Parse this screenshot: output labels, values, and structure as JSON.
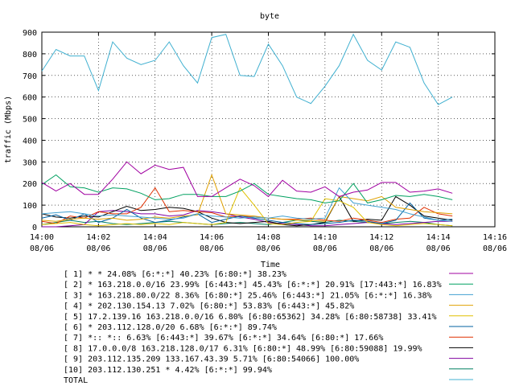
{
  "chart_data": {
    "type": "line",
    "title": "byte",
    "xlabel": "Time",
    "ylabel": "traffic (Mbps)",
    "ylim": [
      0,
      900
    ],
    "yticks": [
      0,
      100,
      200,
      300,
      400,
      500,
      600,
      700,
      800,
      900
    ],
    "xlim_minutes": [
      0,
      16
    ],
    "xticks": [
      {
        "minute": 0,
        "time": "14:00",
        "date": "08/06"
      },
      {
        "minute": 2,
        "time": "14:02",
        "date": "08/06"
      },
      {
        "minute": 4,
        "time": "14:04",
        "date": "08/06"
      },
      {
        "minute": 6,
        "time": "14:06",
        "date": "08/06"
      },
      {
        "minute": 8,
        "time": "14:08",
        "date": "08/06"
      },
      {
        "minute": 10,
        "time": "14:10",
        "date": "08/06"
      },
      {
        "minute": 12,
        "time": "14:12",
        "date": "08/06"
      },
      {
        "minute": 14,
        "time": "14:14",
        "date": "08/06"
      },
      {
        "minute": 16,
        "time": "14:16",
        "date": "08/06"
      }
    ],
    "x_minutes": [
      0,
      0.5,
      1,
      1.5,
      2,
      2.5,
      3,
      3.5,
      4,
      4.5,
      5,
      5.5,
      6,
      6.5,
      7,
      7.5,
      8,
      8.5,
      9,
      9.5,
      10,
      10.5,
      11,
      11.5,
      12,
      12.5,
      13,
      13.5,
      14,
      14.5
    ],
    "series": [
      {
        "name": "[ 1] * * 24.08%  [6:*:*] 40.23% [6:80:*] 38.23%",
        "color": "#a000a0",
        "values": [
          205,
          165,
          200,
          150,
          150,
          220,
          300,
          245,
          285,
          265,
          275,
          140,
          140,
          180,
          220,
          190,
          140,
          215,
          165,
          160,
          185,
          140,
          160,
          170,
          205,
          205,
          160,
          165,
          175,
          155
        ]
      },
      {
        "name": "[ 2] * 163.218.0.0/16 23.99%  [6:443:*] 45.43% [6:*:*] 20.91% [17:443:*] 16.83%",
        "color": "#00a060",
        "values": [
          195,
          240,
          185,
          180,
          160,
          180,
          175,
          155,
          125,
          130,
          150,
          150,
          140,
          140,
          165,
          200,
          150,
          140,
          130,
          125,
          110,
          120,
          200,
          110,
          125,
          145,
          140,
          150,
          140,
          125
        ]
      },
      {
        "name": "[ 3] * 163.218.80.0/22 8.36%  [6:80:*] 25.46% [6:443:*] 21.05% [6:*:*] 16.38%",
        "color": "#40a0d0",
        "values": [
          60,
          65,
          70,
          60,
          50,
          55,
          50,
          45,
          40,
          35,
          40,
          60,
          50,
          45,
          40,
          45,
          40,
          50,
          40,
          35,
          40,
          180,
          110,
          100,
          90,
          80,
          60,
          45,
          30,
          25
        ]
      },
      {
        "name": "[ 4] * 202.130.154.13 7.02%  [6:80:*] 53.83% [6:443:*] 45.82%",
        "color": "#e0a000",
        "values": [
          30,
          25,
          35,
          40,
          35,
          40,
          30,
          35,
          45,
          40,
          50,
          55,
          240,
          60,
          55,
          50,
          40,
          35,
          30,
          30,
          25,
          140,
          130,
          120,
          140,
          90,
          80,
          70,
          65,
          60
        ]
      },
      {
        "name": "[ 5] 17.2.139.16 163.218.0.0/16 6.80%  [6:80:65362] 34.28% [6:80:58738] 33.41%",
        "color": "#e0c000",
        "values": [
          10,
          15,
          20,
          10,
          5,
          10,
          15,
          10,
          15,
          10,
          20,
          15,
          10,
          20,
          180,
          100,
          15,
          10,
          20,
          25,
          130,
          120,
          90,
          20,
          10,
          5,
          10,
          15,
          10,
          5
        ]
      },
      {
        "name": "[ 6] * 203.112.128.0/20 6.68%  [6:*:*] 89.74%",
        "color": "#0060a0",
        "values": [
          40,
          55,
          30,
          60,
          20,
          40,
          80,
          40,
          20,
          30,
          45,
          60,
          20,
          35,
          50,
          40,
          30,
          20,
          15,
          10,
          15,
          20,
          30,
          25,
          15,
          30,
          110,
          40,
          30,
          35
        ]
      },
      {
        "name": "[ 7] *:: *:: 6.63%  [6:443:*] 39.67% [6:*:*] 34.64% [6:80:*] 17.66%",
        "color": "#e03000",
        "values": [
          25,
          15,
          50,
          40,
          70,
          60,
          60,
          90,
          180,
          70,
          75,
          70,
          65,
          45,
          50,
          45,
          40,
          35,
          35,
          40,
          30,
          25,
          40,
          30,
          20,
          35,
          40,
          90,
          60,
          50
        ]
      },
      {
        "name": "[ 8] 17.0.0.0/8 163.218.128.0/17 6.31%  [6:80:*] 48.99% [6:80:59088] 19.99%",
        "color": "#000000",
        "values": [
          60,
          45,
          40,
          50,
          45,
          70,
          95,
          75,
          80,
          90,
          85,
          70,
          40,
          20,
          15,
          20,
          25,
          10,
          5,
          10,
          20,
          140,
          25,
          35,
          30,
          140,
          100,
          50,
          40,
          30
        ]
      },
      {
        "name": "[ 9] 203.112.135.209 133.167.43.39 5.71%  [6:80:54066] 100.00%",
        "color": "#8000a0",
        "values": [
          0,
          0,
          5,
          10,
          70,
          75,
          70,
          60,
          60,
          50,
          55,
          75,
          70,
          60,
          45,
          35,
          20,
          15,
          10,
          5,
          5,
          10,
          15,
          20,
          15,
          10,
          15,
          20,
          25,
          25
        ]
      },
      {
        "name": "[10] 203.112.130.251 * 4.42%  [6:*:*] 99.94%",
        "color": "#008060",
        "values": [
          10,
          20,
          30,
          20,
          25,
          15,
          10,
          15,
          20,
          25,
          20,
          15,
          10,
          15,
          20,
          15,
          10,
          20,
          30,
          25,
          20,
          30,
          25,
          20,
          15,
          20,
          25,
          20,
          10,
          5
        ]
      },
      {
        "name": "TOTAL",
        "color": "#40b0d0",
        "values": [
          720,
          820,
          790,
          790,
          630,
          855,
          780,
          750,
          770,
          855,
          745,
          665,
          875,
          890,
          700,
          695,
          845,
          745,
          600,
          570,
          650,
          745,
          890,
          770,
          725,
          855,
          830,
          665,
          565,
          600
        ]
      }
    ]
  }
}
